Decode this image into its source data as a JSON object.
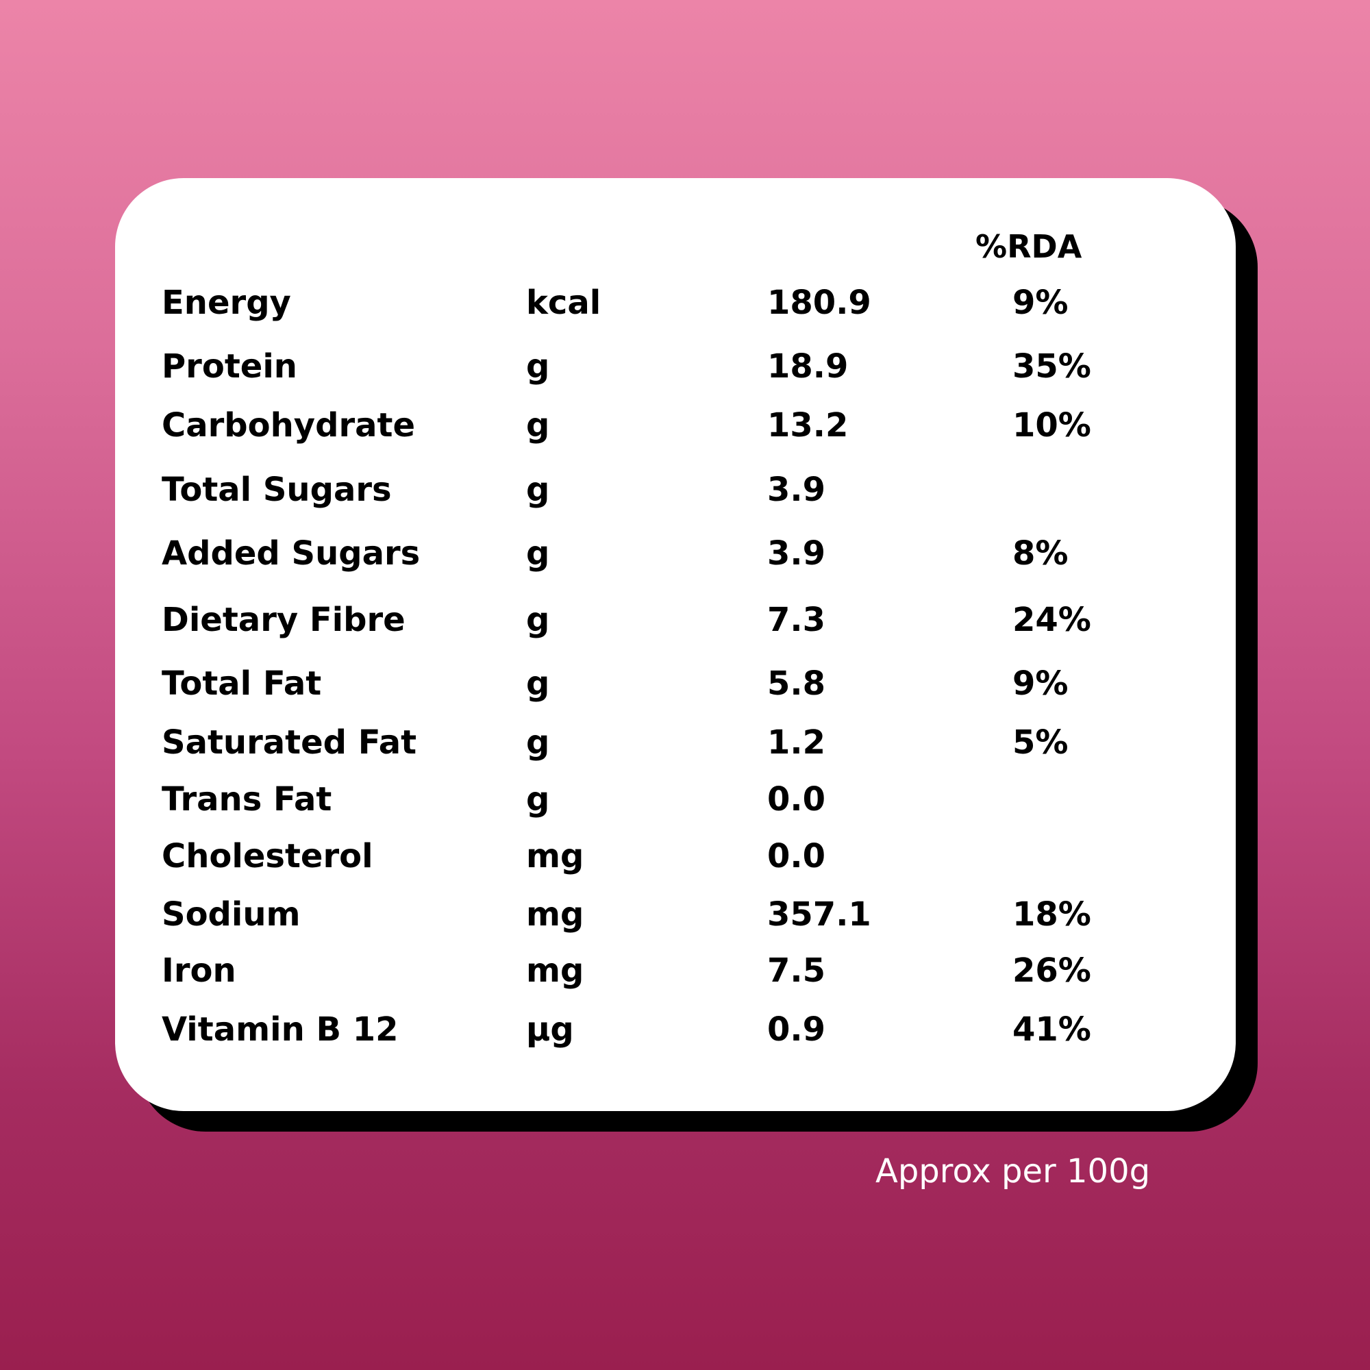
{
  "table": {
    "rda_header": "%RDA",
    "rows": [
      {
        "name": "Energy",
        "unit": "kcal",
        "amount": "180.9",
        "rda": "9%"
      },
      {
        "name": "Protein",
        "unit": "g",
        "amount": "18.9",
        "rda": "35%"
      },
      {
        "name": "Carbohydrate",
        "unit": "g",
        "amount": "13.2",
        "rda": "10%"
      },
      {
        "name": "Total Sugars",
        "unit": "g",
        "amount": "3.9",
        "rda": ""
      },
      {
        "name": "Added Sugars",
        "unit": "g",
        "amount": "3.9",
        "rda": "8%"
      },
      {
        "name": "Dietary Fibre",
        "unit": "g",
        "amount": "7.3",
        "rda": "24%"
      },
      {
        "name": "Total Fat",
        "unit": "g",
        "amount": "5.8",
        "rda": "9%"
      },
      {
        "name": "Saturated Fat",
        "unit": "g",
        "amount": "1.2",
        "rda": "5%"
      },
      {
        "name": "Trans Fat",
        "unit": "g",
        "amount": "0.0",
        "rda": ""
      },
      {
        "name": "Cholesterol",
        "unit": "mg",
        "amount": "0.0",
        "rda": ""
      },
      {
        "name": "Sodium",
        "unit": "mg",
        "amount": "357.1",
        "rda": "18%"
      },
      {
        "name": "Iron",
        "unit": "mg",
        "amount": "7.5",
        "rda": "26%"
      },
      {
        "name": "Vitamin B 12",
        "unit": "µg",
        "amount": "0.9",
        "rda": "41%"
      }
    ]
  },
  "footnote": "Approx per 100g",
  "colors": {
    "background_top": "#ec84a8",
    "background_bottom": "#9a1f4f",
    "card": "#ffffff",
    "card_shadow": "#000000",
    "text": "#000000",
    "footnote_text": "#ffffff"
  }
}
